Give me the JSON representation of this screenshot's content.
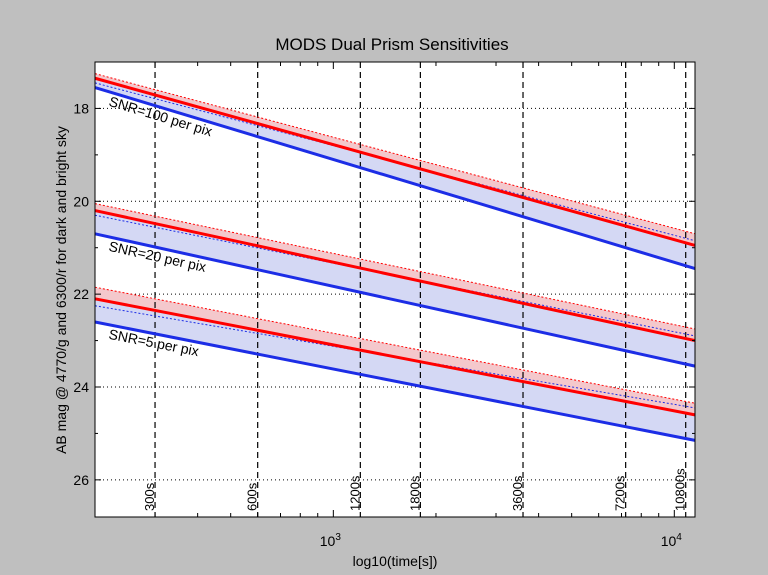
{
  "chart_data": {
    "type": "line",
    "title": "MODS Dual Prism Sensitivities",
    "xlabel": "log10(time[s])",
    "ylabel": "AB mag @ 4770/g and 6300/r for dark and bright sky",
    "x_scale": "log",
    "xlim": [
      200,
      11500
    ],
    "ylim": [
      26.8,
      17.0
    ],
    "y_inverted": true,
    "x_ticks": [
      {
        "value": 1000,
        "label": "10^3"
      },
      {
        "value": 10000,
        "label": "10^4"
      }
    ],
    "y_ticks": [
      18,
      20,
      22,
      24,
      26
    ],
    "grid": "dotted horizontal",
    "vertical_markers": [
      {
        "x": 300,
        "label": "300s"
      },
      {
        "x": 600,
        "label": "600s"
      },
      {
        "x": 1200,
        "label": "1200s"
      },
      {
        "x": 1800,
        "label": "1800s"
      },
      {
        "x": 3600,
        "label": "3600s"
      },
      {
        "x": 7200,
        "label": "7200s"
      },
      {
        "x": 10800,
        "label": "10800s"
      }
    ],
    "groups": [
      {
        "annotation": "SNR=100 per pix",
        "red_solid": [
          [
            200,
            17.35
          ],
          [
            11500,
            20.95
          ]
        ],
        "red_dotted": [
          [
            200,
            17.25
          ],
          [
            11500,
            20.7
          ]
        ],
        "blue_solid": [
          [
            200,
            17.55
          ],
          [
            11500,
            21.45
          ]
        ],
        "blue_dotted": [
          [
            200,
            17.45
          ],
          [
            11500,
            20.85
          ]
        ]
      },
      {
        "annotation": "SNR=20 per pix",
        "red_solid": [
          [
            200,
            20.2
          ],
          [
            11500,
            23.0
          ]
        ],
        "red_dotted": [
          [
            200,
            20.05
          ],
          [
            11500,
            22.75
          ]
        ],
        "blue_solid": [
          [
            200,
            20.7
          ],
          [
            11500,
            23.55
          ]
        ],
        "blue_dotted": [
          [
            200,
            20.3
          ],
          [
            11500,
            22.9
          ]
        ]
      },
      {
        "annotation": "SNR=5 per pix",
        "red_solid": [
          [
            200,
            22.1
          ],
          [
            11500,
            24.6
          ]
        ],
        "red_dotted": [
          [
            200,
            21.85
          ],
          [
            11500,
            24.35
          ]
        ],
        "blue_solid": [
          [
            200,
            22.6
          ],
          [
            11500,
            25.15
          ]
        ],
        "blue_dotted": [
          [
            200,
            22.25
          ],
          [
            11500,
            24.45
          ]
        ]
      }
    ],
    "colors": {
      "red": "#ff0000",
      "red_fill": "#f4c8cc",
      "blue": "#1c2de6",
      "blue_fill": "#d4d8f4",
      "plot_bg": "#ffffff",
      "page_bg": "#bfbfbf"
    }
  }
}
